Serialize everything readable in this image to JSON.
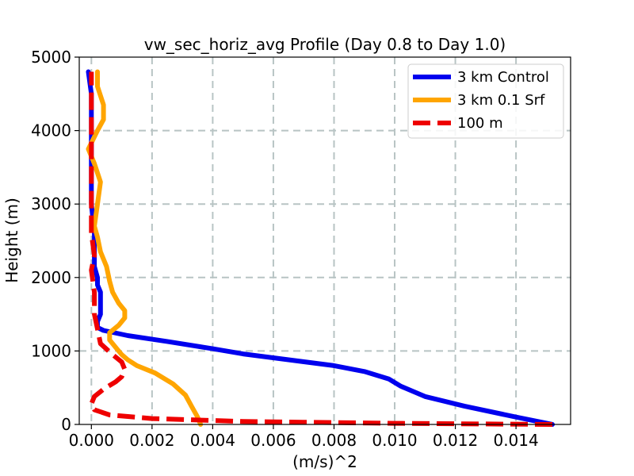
{
  "chart_data": {
    "type": "line",
    "title": "vw_sec_horiz_avg Profile (Day 0.8 to Day 1.0)",
    "xlabel": "(m/s)^2",
    "ylabel": "Height (m)",
    "xlim": [
      -0.0004,
      0.0158
    ],
    "ylim": [
      0,
      5000
    ],
    "xticks": [
      0.0,
      0.002,
      0.004,
      0.006,
      0.008,
      0.01,
      0.012,
      0.014
    ],
    "xtick_labels": [
      "0.000",
      "0.002",
      "0.004",
      "0.006",
      "0.008",
      "0.010",
      "0.012",
      "0.014"
    ],
    "yticks": [
      0,
      1000,
      2000,
      3000,
      4000,
      5000
    ],
    "ytick_labels": [
      "0",
      "1000",
      "2000",
      "3000",
      "4000",
      "5000"
    ],
    "grid": true,
    "legend_position": "top-right",
    "series": [
      {
        "name": "3 km Control",
        "color": "#0000ee",
        "style": "solid",
        "points": [
          [
            0.0152,
            0
          ],
          [
            0.014,
            100
          ],
          [
            0.0123,
            250
          ],
          [
            0.011,
            380
          ],
          [
            0.0102,
            520
          ],
          [
            0.0098,
            620
          ],
          [
            0.009,
            720
          ],
          [
            0.008,
            800
          ],
          [
            0.0065,
            880
          ],
          [
            0.005,
            960
          ],
          [
            0.004,
            1030
          ],
          [
            0.0025,
            1130
          ],
          [
            0.0012,
            1210
          ],
          [
            0.0004,
            1280
          ],
          [
            0.0002,
            1320
          ],
          [
            0.0002,
            1400
          ],
          [
            0.0003,
            1500
          ],
          [
            0.0003,
            1600
          ],
          [
            0.0003,
            1700
          ],
          [
            0.0003,
            1800
          ],
          [
            0.0002,
            1900
          ],
          [
            0.0002,
            2000
          ],
          [
            0.0001,
            2150
          ],
          [
            0.0001,
            2300
          ],
          [
            0.0001,
            2600
          ],
          [
            0.0,
            3000
          ],
          [
            0.0,
            3500
          ],
          [
            0.0,
            4000
          ],
          [
            0.0,
            4500
          ],
          [
            -0.0001,
            4800
          ]
        ]
      },
      {
        "name": "3 km 0.1 Srf",
        "color": "#ffa500",
        "style": "solid",
        "points": [
          [
            0.0036,
            0
          ],
          [
            0.0035,
            100
          ],
          [
            0.0033,
            250
          ],
          [
            0.0031,
            400
          ],
          [
            0.0027,
            550
          ],
          [
            0.0021,
            700
          ],
          [
            0.0015,
            800
          ],
          [
            0.0012,
            880
          ],
          [
            0.001,
            950
          ],
          [
            0.0008,
            1050
          ],
          [
            0.0006,
            1150
          ],
          [
            0.0006,
            1250
          ],
          [
            0.0009,
            1350
          ],
          [
            0.0011,
            1450
          ],
          [
            0.0011,
            1550
          ],
          [
            0.0009,
            1650
          ],
          [
            0.0007,
            1800
          ],
          [
            0.0006,
            1950
          ],
          [
            0.0005,
            2150
          ],
          [
            0.0003,
            2350
          ],
          [
            0.0002,
            2550
          ],
          [
            0.0001,
            2700
          ],
          [
            0.0002,
            3000
          ],
          [
            0.0003,
            3300
          ],
          [
            0.0001,
            3550
          ],
          [
            -0.0001,
            3750
          ],
          [
            0.0002,
            4000
          ],
          [
            0.0004,
            4150
          ],
          [
            0.0004,
            4350
          ],
          [
            0.0002,
            4600
          ],
          [
            0.0002,
            4800
          ]
        ]
      },
      {
        "name": "100 m",
        "color": "#ee0000",
        "style": "dashed",
        "points": [
          [
            0.0152,
            0
          ],
          [
            0.01,
            15
          ],
          [
            0.005,
            40
          ],
          [
            0.002,
            80
          ],
          [
            0.0006,
            130
          ],
          [
            0.0001,
            200
          ],
          [
            0.0,
            280
          ],
          [
            0.0001,
            380
          ],
          [
            0.0004,
            480
          ],
          [
            0.0008,
            580
          ],
          [
            0.001,
            650
          ],
          [
            0.0011,
            750
          ],
          [
            0.001,
            850
          ],
          [
            0.0007,
            950
          ],
          [
            0.0003,
            1100
          ],
          [
            0.0002,
            1300
          ],
          [
            0.0001,
            1500
          ],
          [
            0.0001,
            1800
          ],
          [
            0.0,
            2100
          ],
          [
            0.0001,
            2300
          ],
          [
            0.0,
            2600
          ],
          [
            0.0,
            3000
          ],
          [
            0.0,
            3500
          ],
          [
            0.0,
            4000
          ],
          [
            0.0,
            4500
          ],
          [
            0.0,
            4800
          ]
        ]
      }
    ]
  }
}
